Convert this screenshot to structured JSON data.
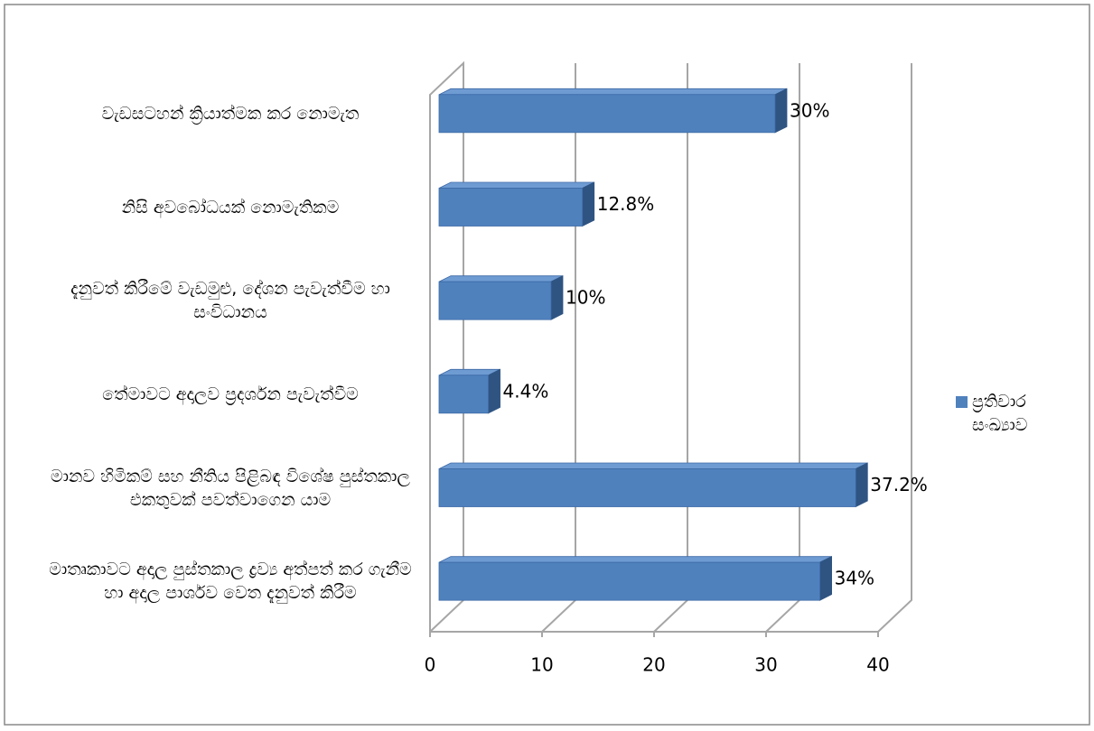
{
  "chart_data": {
    "type": "bar3d-horizontal",
    "categories": [
      "වැඩසටහන් ක්‍රියාත්මක කර නොමැත",
      "නිසි අවබෝධයක් නොමැතිකම",
      "දැනුවත් කිරීමේ වැඩමුළු, දේශන පැවැත්වීම හා සංවිධානය",
      "තේමාවට අදාලව ප්‍රදර්ශන පැවැත්වීම",
      "මානව හිමිකම් සහ නීතිය පිළිබඳ විශේෂ පුස්තකාල එකතුවක් පවත්වාගෙන යාම",
      "මාතෘකාවට අදාල පුස්තකාල ද්‍රව්‍ය අත්පත් කර ගැනීම හා අදාල පාර්ශව වෙත දැනුවත් කිරීම"
    ],
    "series": [
      {
        "name": "ප්‍රතිචාර සංඛ්‍යාව",
        "color": "#4f81bd",
        "values": [
          30,
          12.8,
          10,
          4.4,
          37.2,
          34
        ],
        "value_labels": [
          "30%",
          "12.8%",
          "10%",
          "4.4%",
          "37.2%",
          "34%"
        ]
      }
    ],
    "xlim": [
      0,
      40
    ],
    "xticks": [
      0,
      10,
      20,
      30,
      40
    ],
    "grid": true,
    "legend": "right"
  }
}
